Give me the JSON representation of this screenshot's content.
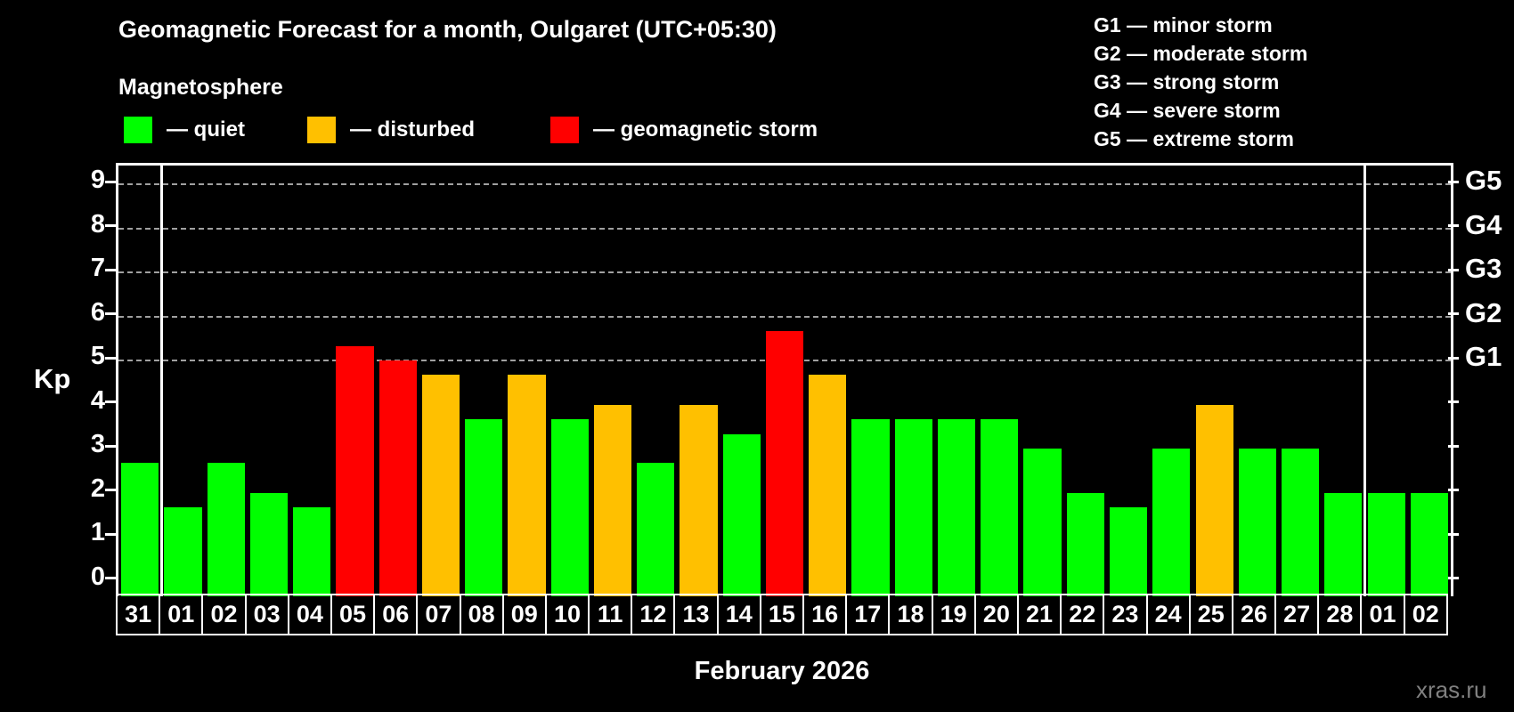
{
  "header": {
    "title": "Geomagnetic Forecast for a month, Oulgaret (UTC+05:30)",
    "subtitle": "Magnetosphere"
  },
  "legend": {
    "items": [
      {
        "key": "quiet",
        "label": "— quiet"
      },
      {
        "key": "disturbed",
        "label": "— disturbed"
      },
      {
        "key": "storm",
        "label": "— geomagnetic storm"
      }
    ]
  },
  "g_legend": {
    "items": [
      "G1 — minor storm",
      "G2 — moderate storm",
      "G3 — strong storm",
      "G4 — severe storm",
      "G5 — extreme storm"
    ]
  },
  "axes": {
    "y_label": "Kp",
    "y_ticks": [
      0,
      1,
      2,
      3,
      4,
      5,
      6,
      7,
      8,
      9
    ],
    "g_ticks": [
      {
        "kp": 5,
        "label": "G1"
      },
      {
        "kp": 6,
        "label": "G2"
      },
      {
        "kp": 7,
        "label": "G3"
      },
      {
        "kp": 8,
        "label": "G4"
      },
      {
        "kp": 9,
        "label": "G5"
      }
    ]
  },
  "month_label": "February 2026",
  "watermark": "xras.ru",
  "colors": {
    "quiet": "#00ff00",
    "disturbed": "#ffc000",
    "storm": "#ff0000",
    "axis": "#ffffff",
    "grid": "#a0a0a0",
    "watermark": "#808080",
    "background": "#000000"
  },
  "chart_data": {
    "type": "bar",
    "title": "Geomagnetic Forecast for a month, Oulgaret (UTC+05:30)",
    "xlabel": "February 2026",
    "ylabel": "Kp",
    "ylim": [
      0,
      9.6
    ],
    "grid_on": true,
    "grid_levels": [
      5,
      6,
      7,
      8,
      9
    ],
    "right_axis_labels": [
      "G1",
      "G2",
      "G3",
      "G4",
      "G5"
    ],
    "month_separator_boundaries": [
      1,
      29
    ],
    "categories": [
      "31",
      "01",
      "02",
      "03",
      "04",
      "05",
      "06",
      "07",
      "08",
      "09",
      "10",
      "11",
      "12",
      "13",
      "14",
      "15",
      "16",
      "17",
      "18",
      "19",
      "20",
      "21",
      "22",
      "23",
      "24",
      "25",
      "26",
      "27",
      "28",
      "01",
      "02"
    ],
    "values": [
      2.67,
      1.67,
      2.67,
      2.0,
      1.67,
      5.33,
      5.0,
      4.67,
      3.67,
      4.67,
      3.67,
      4.0,
      2.67,
      4.0,
      3.33,
      5.67,
      4.67,
      3.67,
      3.67,
      3.67,
      3.67,
      3.0,
      2.0,
      1.67,
      3.0,
      4.0,
      3.0,
      3.0,
      2.0,
      2.0,
      2.0
    ],
    "statuses": [
      "quiet",
      "quiet",
      "quiet",
      "quiet",
      "quiet",
      "storm",
      "storm",
      "disturbed",
      "quiet",
      "disturbed",
      "quiet",
      "disturbed",
      "quiet",
      "disturbed",
      "quiet",
      "storm",
      "disturbed",
      "quiet",
      "quiet",
      "quiet",
      "quiet",
      "quiet",
      "quiet",
      "quiet",
      "quiet",
      "disturbed",
      "quiet",
      "quiet",
      "quiet",
      "quiet",
      "quiet"
    ]
  }
}
